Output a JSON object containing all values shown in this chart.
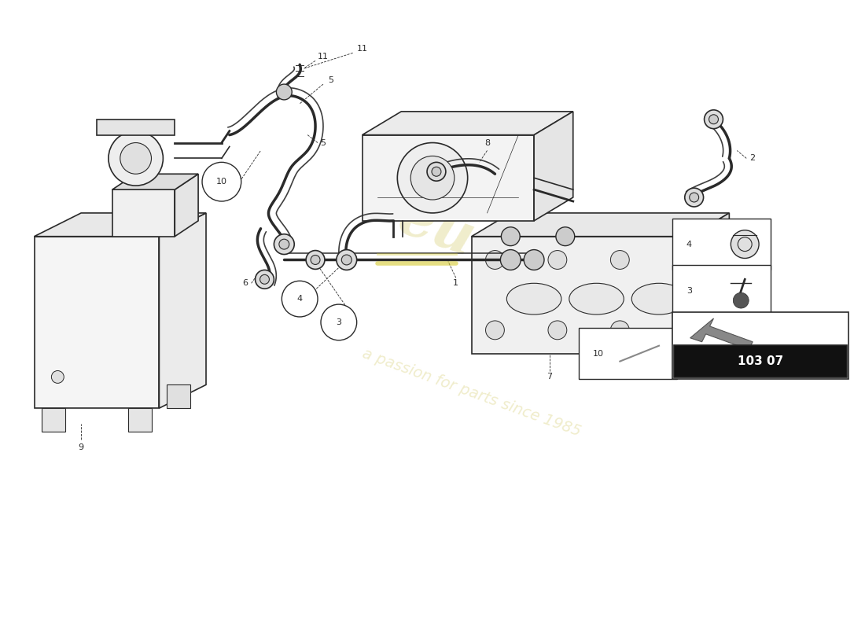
{
  "background_color": "#ffffff",
  "line_color": "#2a2a2a",
  "watermark_color": "#f0edcc",
  "part_number_box": "103 07",
  "fig_width": 11.0,
  "fig_height": 8.0,
  "dpi": 100
}
